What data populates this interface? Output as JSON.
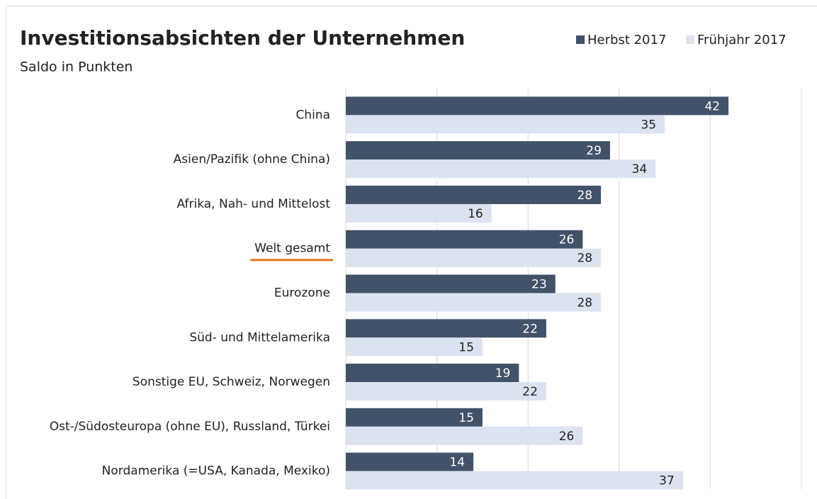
{
  "chart_data": {
    "type": "bar",
    "orientation": "horizontal",
    "title": "Investitionsabsichten der Unternehmen",
    "subtitle": "Saldo in Punkten",
    "categories": [
      "China",
      "Asien/Pazifik (ohne China)",
      "Afrika, Nah- und Mittelost",
      "Welt gesamt",
      "Eurozone",
      "Süd- und Mittelamerika",
      "Sonstige EU, Schweiz, Norwegen",
      "Ost-/Südosteuropa (ohne EU), Russland, Türkei",
      "Nordamerika (=USA, Kanada, Mexiko)"
    ],
    "series": [
      {
        "name": "Herbst 2017",
        "color": "#425268",
        "values": [
          42,
          29,
          28,
          26,
          23,
          22,
          19,
          15,
          14
        ]
      },
      {
        "name": "Frühjahr 2017",
        "color": "#dce3f0",
        "values": [
          35,
          34,
          16,
          28,
          28,
          15,
          22,
          26,
          37
        ]
      }
    ],
    "xlim": [
      0,
      50
    ],
    "xticks": [
      0,
      10,
      20,
      30,
      40,
      50
    ],
    "grid": true,
    "legend": "top-right",
    "highlight_category": 3,
    "highlight_color": "#e87722"
  }
}
